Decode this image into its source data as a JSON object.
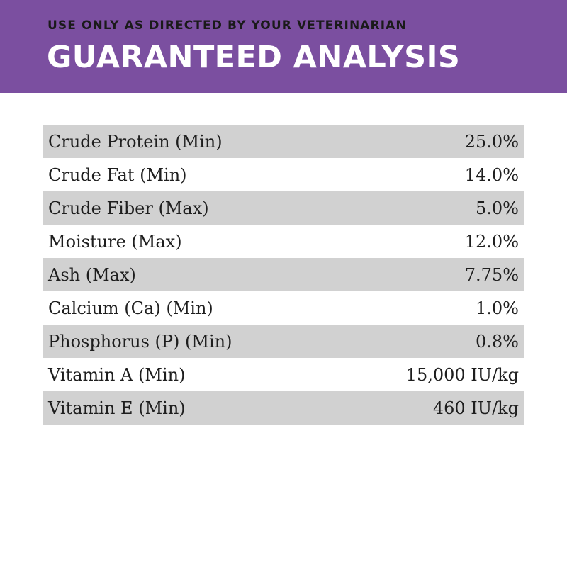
{
  "header": {
    "subtitle": "USE ONLY AS DIRECTED BY YOUR VETERINARIAN",
    "title": "GUARANTEED ANALYSIS",
    "background_color": "#7b4fa0"
  },
  "analysis": {
    "shade_color": "#d1d1d1",
    "rows": [
      {
        "label": "Crude Protein (Min)",
        "value": "25.0%"
      },
      {
        "label": "Crude Fat (Min)",
        "value": "14.0%"
      },
      {
        "label": "Crude Fiber (Max)",
        "value": "5.0%"
      },
      {
        "label": "Moisture (Max)",
        "value": "12.0%"
      },
      {
        "label": "Ash (Max)",
        "value": "7.75%"
      },
      {
        "label": "Calcium (Ca) (Min)",
        "value": "1.0%"
      },
      {
        "label": "Phosphorus (P) (Min)",
        "value": "0.8%"
      },
      {
        "label": "Vitamin A (Min)",
        "value": "15,000 IU/kg"
      },
      {
        "label": "Vitamin E (Min)",
        "value": "460 IU/kg"
      }
    ]
  }
}
